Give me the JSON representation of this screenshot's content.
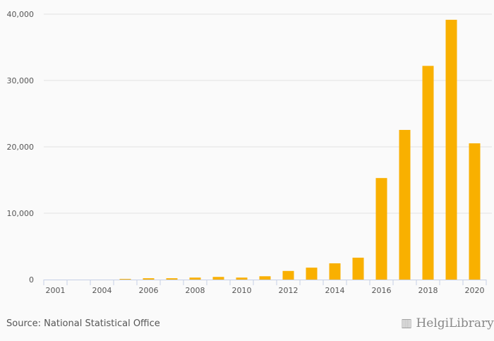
{
  "chart_data": {
    "type": "bar",
    "categories": [
      "2001",
      "2003",
      "2004",
      "2005",
      "2006",
      "2007",
      "2008",
      "2009",
      "2010",
      "2011",
      "2012",
      "2013",
      "2014",
      "2015",
      "2016",
      "2017",
      "2018",
      "2019",
      "2020"
    ],
    "tick_labels": [
      "2001",
      "2004",
      "2006",
      "2008",
      "2010",
      "2012",
      "2014",
      "2016",
      "2018",
      "2020"
    ],
    "values": [
      0,
      0,
      0,
      100,
      200,
      200,
      300,
      400,
      300,
      500,
      1300,
      1800,
      2450,
      3300,
      15300,
      22550,
      32200,
      39150,
      20530
    ],
    "ylim": [
      0,
      40000
    ],
    "yticks": [
      0,
      10000,
      20000,
      30000,
      40000
    ],
    "ytick_labels": [
      "0",
      "10,000",
      "20,000",
      "30,000",
      "40,000"
    ],
    "bar_color": "#f9b000",
    "grid": true,
    "title": "",
    "xlabel": "",
    "ylabel": ""
  },
  "footer": {
    "source": "Source: National Statistical Office",
    "logo_text": "HelgiLibrary"
  }
}
